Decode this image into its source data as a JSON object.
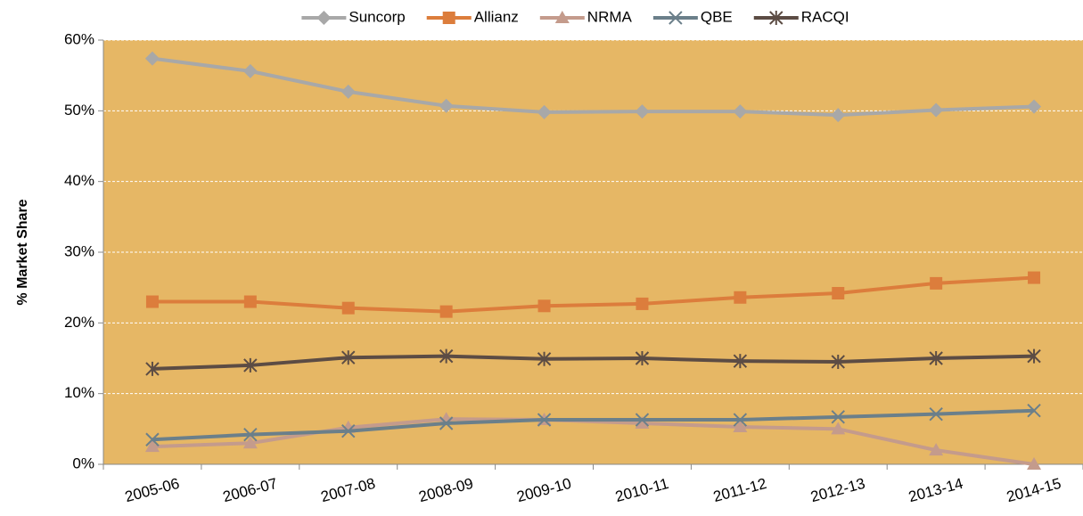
{
  "chart_data": {
    "type": "line",
    "y_label": "% Market Share",
    "categories": [
      "2005-06",
      "2006-07",
      "2007-08",
      "2008-09",
      "2009-10",
      "2010-11",
      "2011-12",
      "2012-13",
      "2013-14",
      "2014-15"
    ],
    "series": [
      {
        "name": "Suncorp",
        "color": "#a8a8a8",
        "marker": "diamond",
        "values": [
          57.4,
          55.6,
          52.7,
          50.7,
          49.8,
          49.9,
          49.9,
          49.4,
          50.1,
          50.6
        ]
      },
      {
        "name": "Allianz",
        "color": "#dc7d3c",
        "marker": "square",
        "values": [
          23.0,
          23.0,
          22.1,
          21.6,
          22.4,
          22.7,
          23.6,
          24.2,
          25.6,
          26.4
        ]
      },
      {
        "name": "NRMA",
        "color": "#c49b8c",
        "marker": "triangle",
        "values": [
          2.5,
          3.0,
          5.2,
          6.4,
          6.3,
          5.8,
          5.3,
          5.0,
          2.0,
          0
        ]
      },
      {
        "name": "QBE",
        "color": "#6b7f8a",
        "marker": "x",
        "values": [
          3.5,
          4.2,
          4.7,
          5.8,
          6.3,
          6.3,
          6.3,
          6.7,
          7.1,
          7.6
        ]
      },
      {
        "name": "RACQI",
        "color": "#5c4c44",
        "marker": "star",
        "values": [
          13.5,
          14.0,
          15.1,
          15.3,
          14.9,
          15.0,
          14.6,
          14.5,
          15.0,
          15.3
        ]
      }
    ],
    "ylim": [
      0,
      60
    ],
    "yticks": [
      {
        "value": 0,
        "label": "0%"
      },
      {
        "value": 10,
        "label": "10%"
      },
      {
        "value": 20,
        "label": "20%"
      },
      {
        "value": 30,
        "label": "30%"
      },
      {
        "value": 40,
        "label": "40%"
      },
      {
        "value": 50,
        "label": "50%"
      },
      {
        "value": 60,
        "label": "60%"
      }
    ],
    "grid": true,
    "background": "#e6b765",
    "legend": "top"
  }
}
